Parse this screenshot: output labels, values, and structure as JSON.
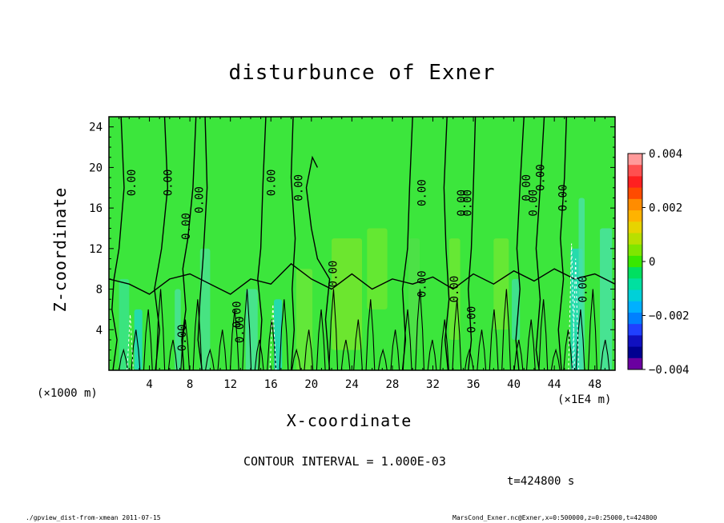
{
  "title": "disturbunce of Exner",
  "chart_data": {
    "type": "heatmap",
    "title": "disturbunce of Exner",
    "xlabel": "X-coordinate",
    "ylabel": "Z-coordinate",
    "x_unit_label": "(×1000 m)",
    "x_unit_label_2": "(×1E4 m)",
    "xlim": [
      0,
      50
    ],
    "ylim": [
      0,
      25
    ],
    "x_ticks": [
      "4",
      "8",
      "12",
      "16",
      "20",
      "24",
      "28",
      "32",
      "36",
      "40",
      "44",
      "48"
    ],
    "y_ticks": [
      "4",
      "8",
      "12",
      "16",
      "20",
      "24"
    ],
    "colorbar": {
      "range": [
        -0.004,
        0.004
      ],
      "tick_labels": [
        "0.004",
        "0.002",
        "0",
        "−0.002",
        "−0.004"
      ],
      "colors": [
        "#ff9a9a",
        "#ff5050",
        "#ff2020",
        "#ff4b00",
        "#ff8c00",
        "#ffb300",
        "#e7d400",
        "#b8e000",
        "#7ee600",
        "#38e800",
        "#00e060",
        "#00e0a0",
        "#00d0d8",
        "#00b0ff",
        "#0080ff",
        "#2040ff",
        "#1010c0",
        "#000090",
        "#6a00a0"
      ]
    },
    "contour_labels": [
      "0.00",
      "0.00",
      "0.00",
      "0.00",
      "0.00",
      "0.00",
      "0.00",
      "0.00",
      "0.00",
      "0.00",
      "0.00",
      "0.00",
      "0.00",
      "0.00",
      "0.00",
      "0.00",
      "0.00",
      "0.00",
      "0.00",
      "0.00",
      "0.00"
    ],
    "contour_interval_text": "CONTOUR INTERVAL = 1.000E-03",
    "time_text": "t=424800 s"
  },
  "footer": {
    "left": "./gpview_dist-from-xmean  2011-07-15",
    "right": "MarsCond_Exner.nc@Exner,x=0:500000,z=0:25000,t=424800"
  }
}
